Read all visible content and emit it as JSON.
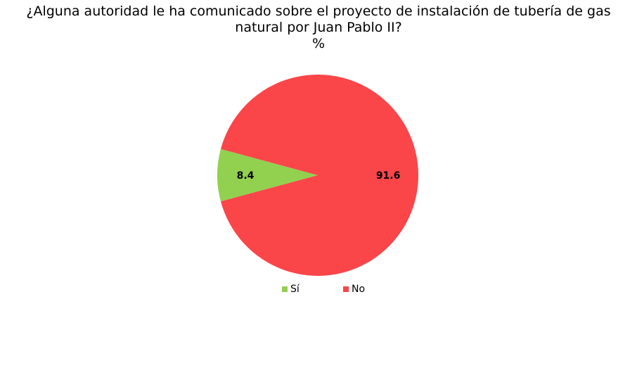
{
  "chart_data": {
    "type": "pie",
    "title_lines": [
      "¿Alguna autoridad le ha comunicado sobre el proyecto de instalación de tubería de gas",
      "natural por Juan Pablo II?",
      "%"
    ],
    "categories": [
      "Sí",
      "No"
    ],
    "values": [
      8.4,
      91.6
    ],
    "data_labels": [
      "8.4",
      "91.6"
    ],
    "colors": [
      "#92D050",
      "#FA4549"
    ],
    "legend_position": "bottom"
  }
}
